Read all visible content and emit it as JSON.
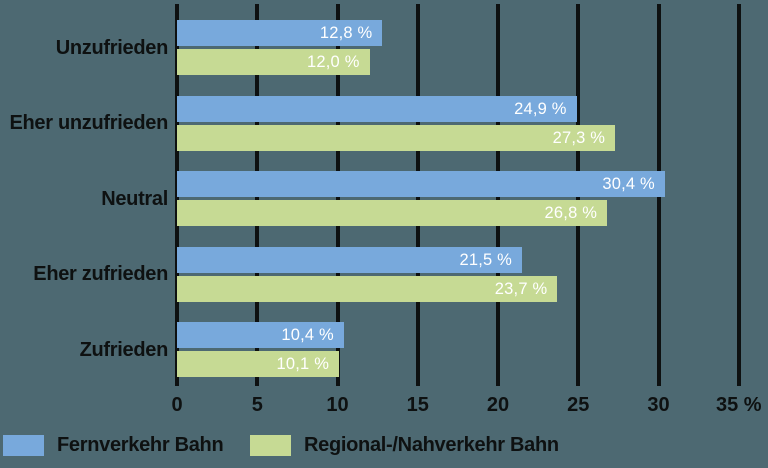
{
  "chart_data": {
    "type": "bar",
    "orientation": "horizontal",
    "title": "",
    "xlabel": "",
    "ylabel": "",
    "xlim": [
      0,
      35
    ],
    "x_ticks": [
      0,
      5,
      10,
      15,
      20,
      25,
      30,
      35
    ],
    "x_tick_labels": [
      "0",
      "5",
      "10",
      "15",
      "20",
      "25",
      "30",
      "35 %"
    ],
    "grid": "vertical",
    "legend_position": "bottom",
    "categories": [
      "Unzufrieden",
      "Eher unzufrieden",
      "Neutral",
      "Eher zufrieden",
      "Zufrieden"
    ],
    "series": [
      {
        "name": "Fernverkehr Bahn",
        "color": "#78a9dc",
        "values": [
          12.8,
          24.9,
          30.4,
          21.5,
          10.4
        ],
        "value_labels": [
          "12,8 %",
          "24,9 %",
          "30,4 %",
          "21,5 %",
          "10,4 %"
        ]
      },
      {
        "name": "Regional-/Nahverkehr Bahn",
        "color": "#c6da94",
        "values": [
          12.0,
          27.3,
          26.8,
          23.7,
          10.1
        ],
        "value_labels": [
          "12,0 %",
          "27,3 %",
          "26,8 %",
          "23,7 %",
          "10,1 %"
        ]
      }
    ]
  },
  "legend": {
    "items": [
      {
        "label": "Fernverkehr Bahn",
        "color": "#78a9dc"
      },
      {
        "label": "Regional-/Nahverkehr Bahn",
        "color": "#c6da94"
      }
    ]
  },
  "colors": {
    "background": "#4d6972",
    "bar_blue": "#78a9dc",
    "bar_green": "#c6da94",
    "grid_and_text": "#0e1111",
    "bar_value_text": "#ffffff"
  }
}
